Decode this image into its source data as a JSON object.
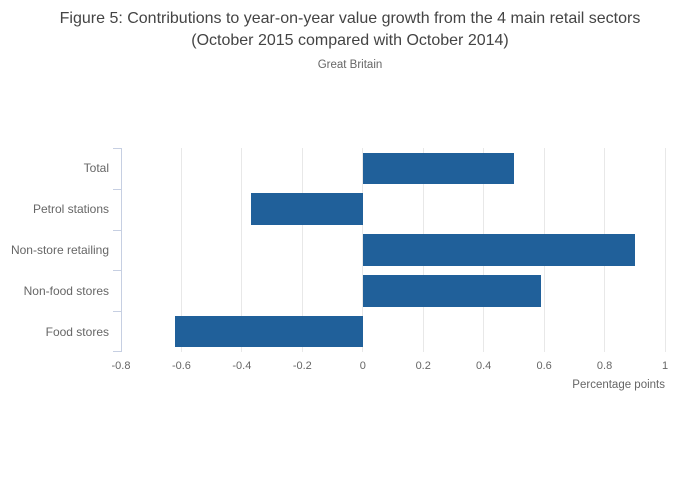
{
  "header": {
    "title": "Figure 5: Contributions to year-on-year value growth from the 4 main retail sectors (October 2015 compared with October 2014)",
    "subtitle": "Great Britain"
  },
  "chart_data": {
    "type": "bar",
    "orientation": "horizontal",
    "title": "Figure 5: Contributions to year-on-year value growth from the 4 main retail sectors (October 2015 compared with October 2014)",
    "subtitle": "Great Britain",
    "categories": [
      "Total",
      "Petrol stations",
      "Non-store retailing",
      "Non-food stores",
      "Food stores"
    ],
    "values": [
      0.5,
      -0.37,
      0.9,
      0.59,
      -0.62
    ],
    "xlabel": "Percentage points",
    "ylabel": "",
    "xlim": [
      -0.8,
      1.0
    ],
    "xticks": [
      -0.8,
      -0.6,
      -0.4,
      -0.2,
      0,
      0.2,
      0.4,
      0.6,
      0.8,
      1
    ],
    "xtick_labels": [
      "-0.8",
      "-0.6",
      "-0.4",
      "-0.2",
      "0",
      "0.2",
      "0.4",
      "0.6",
      "0.8",
      "1"
    ],
    "grid": true,
    "legend": false
  },
  "colors": {
    "bar": "#20609a",
    "title_text": "#444444",
    "muted_text": "#666666",
    "gridline": "#e8e8e8",
    "axis_line": "#c6cfe2",
    "background": "#ffffff"
  }
}
